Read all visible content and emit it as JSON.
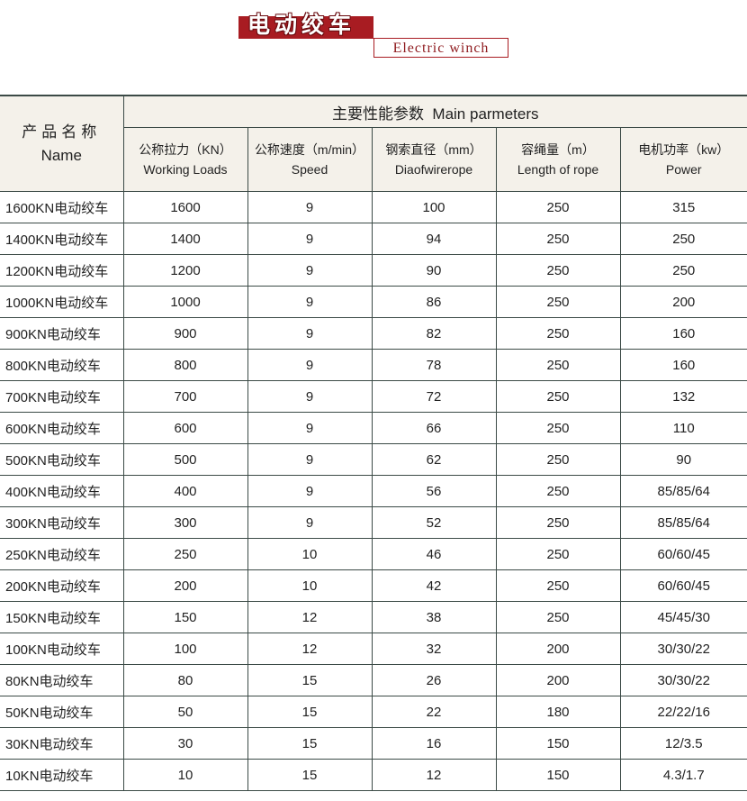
{
  "title": {
    "cn": "电动绞车",
    "en": "Electric winch"
  },
  "colors": {
    "brand_red": "#a81c22",
    "header_bg": "#f4f1ea",
    "rule": "#3b4a46"
  },
  "table": {
    "name_header": {
      "cn": "产品名称",
      "en": "Name"
    },
    "group_header": "主要性能参数  Main parmeters",
    "columns": [
      {
        "cn": "公称拉力（KN）",
        "en": "Working Loads"
      },
      {
        "cn": "公称速度（m/min）",
        "en": "Speed"
      },
      {
        "cn": "钢索直径（mm）",
        "en": "Diaofwirerope"
      },
      {
        "cn": "容绳量（m）",
        "en": "Length of rope"
      },
      {
        "cn": "电机功率（kw）",
        "en": "Power"
      }
    ],
    "rows": [
      [
        "1600KN电动绞车",
        "1600",
        "9",
        "100",
        "250",
        "315"
      ],
      [
        "1400KN电动绞车",
        "1400",
        "9",
        "94",
        "250",
        "250"
      ],
      [
        "1200KN电动绞车",
        "1200",
        "9",
        "90",
        "250",
        "250"
      ],
      [
        "1000KN电动绞车",
        "1000",
        "9",
        "86",
        "250",
        "200"
      ],
      [
        "900KN电动绞车",
        "900",
        "9",
        "82",
        "250",
        "160"
      ],
      [
        "800KN电动绞车",
        "800",
        "9",
        "78",
        "250",
        "160"
      ],
      [
        "700KN电动绞车",
        "700",
        "9",
        "72",
        "250",
        "132"
      ],
      [
        "600KN电动绞车",
        "600",
        "9",
        "66",
        "250",
        "110"
      ],
      [
        "500KN电动绞车",
        "500",
        "9",
        "62",
        "250",
        "90"
      ],
      [
        "400KN电动绞车",
        "400",
        "9",
        "56",
        "250",
        "85/85/64"
      ],
      [
        "300KN电动绞车",
        "300",
        "9",
        "52",
        "250",
        "85/85/64"
      ],
      [
        "250KN电动绞车",
        "250",
        "10",
        "46",
        "250",
        "60/60/45"
      ],
      [
        "200KN电动绞车",
        "200",
        "10",
        "42",
        "250",
        "60/60/45"
      ],
      [
        "150KN电动绞车",
        "150",
        "12",
        "38",
        "250",
        "45/45/30"
      ],
      [
        "100KN电动绞车",
        "100",
        "12",
        "32",
        "200",
        "30/30/22"
      ],
      [
        "80KN电动绞车",
        "80",
        "15",
        "26",
        "200",
        "30/30/22"
      ],
      [
        "50KN电动绞车",
        "50",
        "15",
        "22",
        "180",
        "22/22/16"
      ],
      [
        "30KN电动绞车",
        "30",
        "15",
        "16",
        "150",
        "12/3.5"
      ],
      [
        "10KN电动绞车",
        "10",
        "15",
        "12",
        "150",
        "4.3/1.7"
      ]
    ]
  }
}
